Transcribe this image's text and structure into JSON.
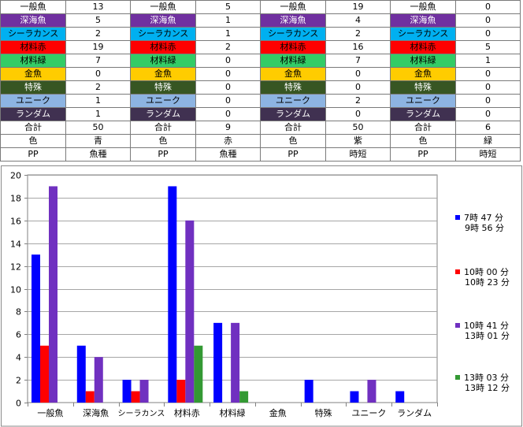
{
  "table": {
    "categories": [
      {
        "label": "一般魚",
        "bg": "#ffffff",
        "fg": "#000000"
      },
      {
        "label": "深海魚",
        "bg": "#7030a0",
        "fg": "#ffffff"
      },
      {
        "label": "シーラカンス",
        "bg": "#00b0f0",
        "fg": "#000000"
      },
      {
        "label": "材料赤",
        "bg": "#ff0000",
        "fg": "#000000"
      },
      {
        "label": "材料緑",
        "bg": "#33cc66",
        "fg": "#000000"
      },
      {
        "label": "金魚",
        "bg": "#ffcc00",
        "fg": "#000000"
      },
      {
        "label": "特殊",
        "bg": "#375623",
        "fg": "#ffffff"
      },
      {
        "label": "ユニーク",
        "bg": "#8db4e2",
        "fg": "#000000"
      },
      {
        "label": "ランダム",
        "bg": "#403151",
        "fg": "#ffffff"
      }
    ],
    "groups": [
      {
        "values": [
          "13",
          "5",
          "2",
          "19",
          "7",
          "0",
          "2",
          "1",
          "1"
        ],
        "total": "50",
        "color_label": "色",
        "color_value": "青",
        "mode_label": "PP",
        "mode_value": "魚種"
      },
      {
        "values": [
          "5",
          "1",
          "1",
          "2",
          "0",
          "0",
          "0",
          "0",
          "0"
        ],
        "total": "9",
        "color_label": "色",
        "color_value": "赤",
        "mode_label": "PP",
        "mode_value": "魚種"
      },
      {
        "values": [
          "19",
          "4",
          "2",
          "16",
          "7",
          "0",
          "0",
          "2",
          "0"
        ],
        "total": "50",
        "color_label": "色",
        "color_value": "紫",
        "mode_label": "PP",
        "mode_value": "時短"
      },
      {
        "values": [
          "0",
          "0",
          "0",
          "5",
          "1",
          "0",
          "0",
          "0",
          "0"
        ],
        "total": "6",
        "color_label": "色",
        "color_value": "緑",
        "mode_label": "PP",
        "mode_value": "時短"
      }
    ],
    "total_label": "合計"
  },
  "chart_data": {
    "type": "bar",
    "categories": [
      "一般魚",
      "深海魚",
      "シーラカンス",
      "材料赤",
      "材料緑",
      "金魚",
      "特殊",
      "ユニーク",
      "ランダム"
    ],
    "series": [
      {
        "name": "7時47分 9時56分",
        "label_lines": [
          "7時 47 分",
          "9時 56 分"
        ],
        "color": "#0000ff",
        "values": [
          13,
          5,
          2,
          19,
          7,
          0,
          2,
          1,
          1
        ]
      },
      {
        "name": "10時00分 10時23分",
        "label_lines": [
          "10時 00 分",
          "10時 23 分"
        ],
        "color": "#ff0000",
        "values": [
          5,
          1,
          1,
          2,
          0,
          0,
          0,
          0,
          0
        ]
      },
      {
        "name": "10時41分 13時01分",
        "label_lines": [
          "10時 41 分",
          "13時 01 分"
        ],
        "color": "#7030c0",
        "values": [
          19,
          4,
          2,
          16,
          7,
          0,
          0,
          2,
          0
        ]
      },
      {
        "name": "13時03分 13時12分",
        "label_lines": [
          "13時 03 分",
          "13時 12 分"
        ],
        "color": "#339933",
        "values": [
          0,
          0,
          0,
          5,
          1,
          0,
          0,
          0,
          0
        ]
      }
    ],
    "ylim": [
      0,
      20
    ],
    "yticks": [
      0,
      2,
      4,
      6,
      8,
      10,
      12,
      14,
      16,
      18,
      20
    ],
    "grid": true,
    "legend": "right"
  }
}
